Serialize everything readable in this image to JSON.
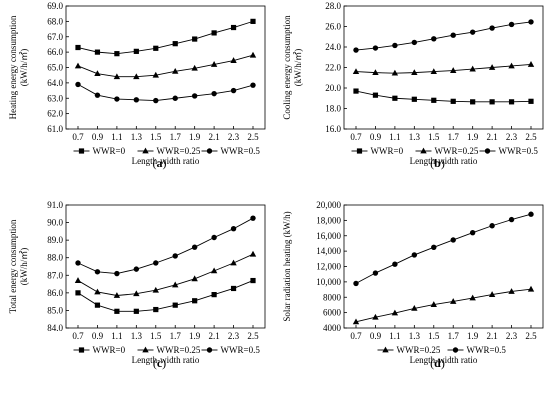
{
  "chart_data": [
    {
      "type": "line",
      "panel_label": "(a)",
      "ylabel_lines": [
        "Heating  energy consumption",
        "(kW/h/㎡)"
      ],
      "xlabel": "Length-width ratio",
      "x": [
        0.7,
        0.9,
        1.1,
        1.3,
        1.5,
        1.7,
        1.9,
        2.1,
        2.3,
        2.5
      ],
      "x_tick_labels": [
        "0.7",
        "0.9",
        "1.1",
        "1.3",
        "1.5",
        "1.7",
        "1.9",
        "2.1",
        "2.3",
        "2.5"
      ],
      "ylim": [
        61.0,
        69.0
      ],
      "y_ticks": [
        61.0,
        62.0,
        63.0,
        64.0,
        65.0,
        66.0,
        67.0,
        68.0,
        69.0
      ],
      "y_tick_labels": [
        "61.0",
        "62.0",
        "63.0",
        "64.0",
        "65.0",
        "66.0",
        "67.0",
        "68.0",
        "69.0"
      ],
      "grid": false,
      "legend_position": "bottom",
      "series": [
        {
          "name": "WWR=0",
          "marker": "square",
          "values": [
            66.3,
            66.0,
            65.9,
            66.05,
            66.25,
            66.55,
            66.85,
            67.25,
            67.6,
            68.0
          ]
        },
        {
          "name": "WWR=0.25",
          "marker": "triangle",
          "values": [
            65.1,
            64.6,
            64.4,
            64.4,
            64.5,
            64.75,
            64.95,
            65.2,
            65.45,
            65.8
          ]
        },
        {
          "name": "WWR=0.5",
          "marker": "circle",
          "values": [
            63.9,
            63.2,
            62.95,
            62.9,
            62.85,
            63.0,
            63.15,
            63.3,
            63.5,
            63.85
          ]
        }
      ]
    },
    {
      "type": "line",
      "panel_label": "(b)",
      "ylabel_lines": [
        "Cooling  energy consumption",
        "(kW/h/㎡)"
      ],
      "xlabel": "Length-width ratio",
      "x": [
        0.7,
        0.9,
        1.1,
        1.3,
        1.5,
        1.7,
        1.9,
        2.1,
        2.3,
        2.5
      ],
      "x_tick_labels": [
        "0.7",
        "0.9",
        "1.1",
        "1.3",
        "1.5",
        "1.7",
        "1.9",
        "2.1",
        "2.3",
        "2.5"
      ],
      "ylim": [
        16.0,
        28.0
      ],
      "y_ticks": [
        16.0,
        18.0,
        20.0,
        22.0,
        24.0,
        26.0,
        28.0
      ],
      "y_tick_labels": [
        "16.0",
        "18.0",
        "20.0",
        "22.0",
        "24.0",
        "26.0",
        "28.0"
      ],
      "grid": false,
      "legend_position": "bottom",
      "series": [
        {
          "name": "WWR=0",
          "marker": "square",
          "values": [
            19.7,
            19.3,
            19.0,
            18.9,
            18.8,
            18.7,
            18.65,
            18.65,
            18.65,
            18.7
          ]
        },
        {
          "name": "WWR=0.25",
          "marker": "triangle",
          "values": [
            21.6,
            21.5,
            21.45,
            21.5,
            21.6,
            21.7,
            21.85,
            22.0,
            22.15,
            22.3
          ]
        },
        {
          "name": "WWR=0.5",
          "marker": "circle",
          "values": [
            23.7,
            23.9,
            24.15,
            24.45,
            24.8,
            25.15,
            25.45,
            25.85,
            26.2,
            26.45
          ]
        }
      ]
    },
    {
      "type": "line",
      "panel_label": "(c)",
      "ylabel_lines": [
        "Total energy consumption",
        "(kW/h/㎡)"
      ],
      "xlabel": "Length-width ratio",
      "x": [
        0.7,
        0.9,
        1.1,
        1.3,
        1.5,
        1.7,
        1.9,
        2.1,
        2.3,
        2.5
      ],
      "x_tick_labels": [
        "0.7",
        "0.9",
        "1.1",
        "1.3",
        "1.5",
        "1.7",
        "1.9",
        "2.1",
        "2.3",
        "2.5"
      ],
      "ylim": [
        84.0,
        91.0
      ],
      "y_ticks": [
        84.0,
        85.0,
        86.0,
        87.0,
        88.0,
        89.0,
        90.0,
        91.0
      ],
      "y_tick_labels": [
        "84.0",
        "85.0",
        "86.0",
        "87.0",
        "88.0",
        "89.0",
        "90.0",
        "91.0"
      ],
      "grid": false,
      "legend_position": "bottom",
      "series": [
        {
          "name": "WWR=0",
          "marker": "square",
          "values": [
            86.0,
            85.3,
            84.95,
            84.95,
            85.05,
            85.3,
            85.55,
            85.9,
            86.25,
            86.7
          ]
        },
        {
          "name": "WWR=0.25",
          "marker": "triangle",
          "values": [
            86.7,
            86.05,
            85.85,
            85.95,
            86.15,
            86.45,
            86.8,
            87.25,
            87.7,
            88.2
          ]
        },
        {
          "name": "WWR=0.5",
          "marker": "circle",
          "values": [
            87.7,
            87.2,
            87.1,
            87.35,
            87.7,
            88.1,
            88.6,
            89.15,
            89.65,
            90.25
          ]
        }
      ]
    },
    {
      "type": "line",
      "panel_label": "(d)",
      "ylabel_lines": [
        "Solar radiation heating (kW/h)"
      ],
      "xlabel": "Length-width ratio",
      "x": [
        0.7,
        0.9,
        1.1,
        1.3,
        1.5,
        1.7,
        1.9,
        2.1,
        2.3,
        2.5
      ],
      "x_tick_labels": [
        "0.7",
        "0.9",
        "1.1",
        "1.3",
        "1.5",
        "1.7",
        "1.9",
        "2.1",
        "2.3",
        "2.5"
      ],
      "ylim": [
        4000,
        20000
      ],
      "y_ticks": [
        4000,
        6000,
        8000,
        10000,
        12000,
        14000,
        16000,
        18000,
        20000
      ],
      "y_tick_labels": [
        "4000",
        "6000",
        "8000",
        "10,000",
        "12,000",
        "14,000",
        "16,000",
        "18,000",
        "20,000"
      ],
      "grid": false,
      "legend_position": "bottom",
      "series": [
        {
          "name": "WWR=0.25",
          "marker": "triangle",
          "values": [
            4800,
            5400,
            5950,
            6550,
            7050,
            7450,
            7900,
            8350,
            8750,
            9050
          ]
        },
        {
          "name": "WWR=0.5",
          "marker": "circle",
          "values": [
            9800,
            11150,
            12300,
            13500,
            14500,
            15450,
            16400,
            17300,
            18100,
            18800
          ]
        }
      ]
    }
  ]
}
